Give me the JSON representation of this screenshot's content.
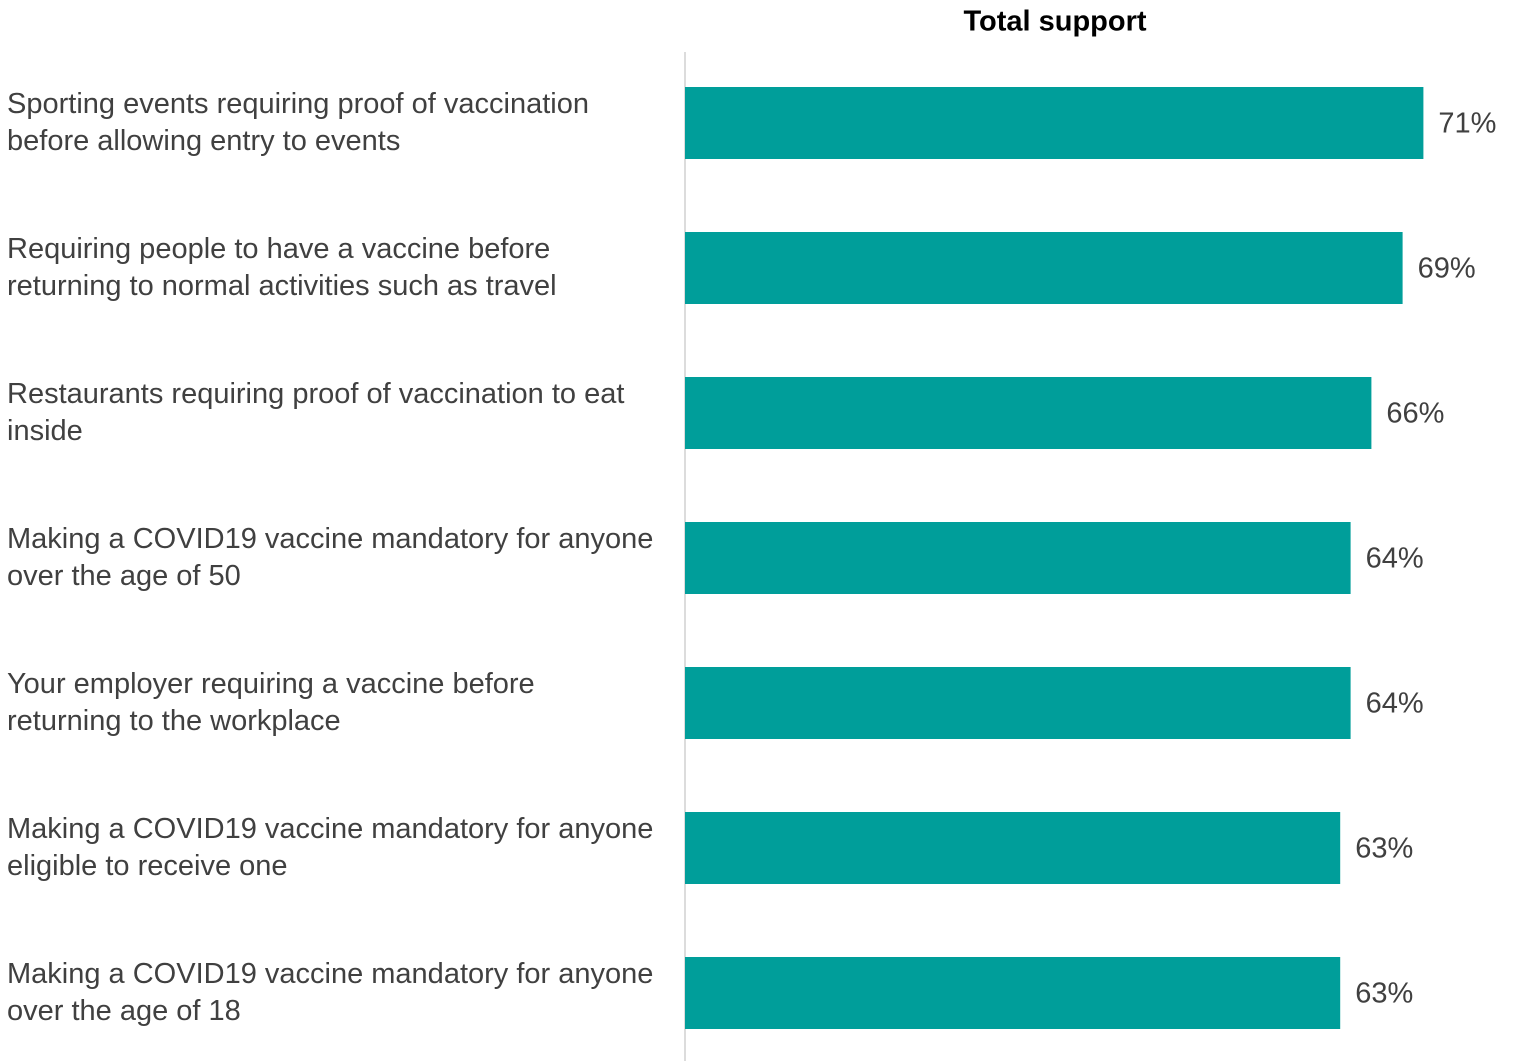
{
  "chart_data": {
    "type": "bar",
    "orientation": "horizontal",
    "title": "Total support",
    "categories": [
      "Sporting events requiring proof of vaccination before allowing entry to events",
      "Requiring people to have a vaccine before returning to normal activities such as travel",
      "Restaurants requiring proof of vaccination to eat inside",
      "Making a COVID19 vaccine mandatory for anyone over the age of 50",
      "Your employer requiring a vaccine before returning to the workplace",
      "Making a COVID19 vaccine mandatory for anyone eligible to receive one",
      "Making a COVID19 vaccine mandatory for anyone over the age of 18"
    ],
    "values": [
      71,
      69,
      66,
      64,
      64,
      63,
      63
    ],
    "value_labels": [
      "71%",
      "69%",
      "66%",
      "64%",
      "64%",
      "63%",
      "63%"
    ],
    "color": "#009e9a",
    "xlim": [
      0,
      80
    ]
  }
}
